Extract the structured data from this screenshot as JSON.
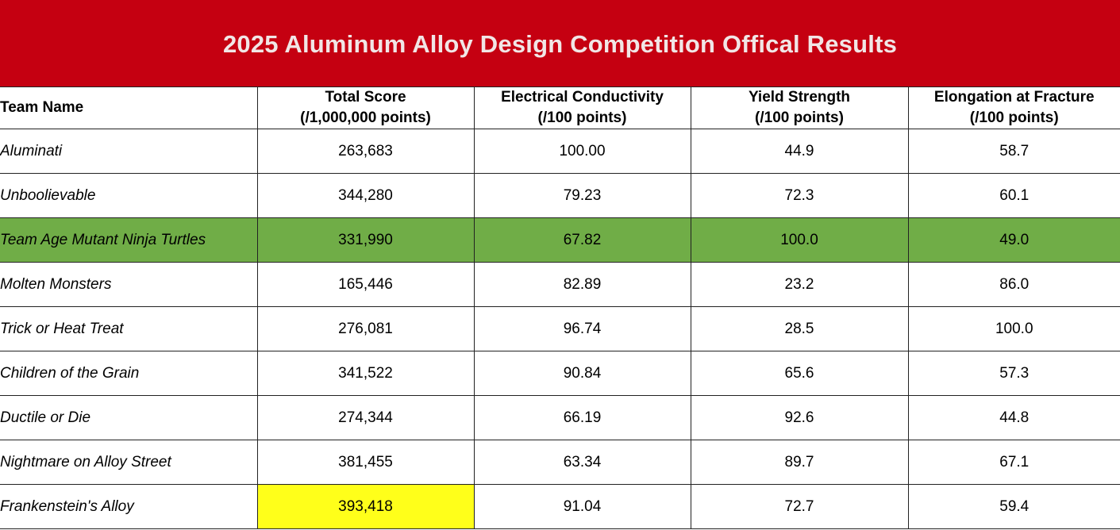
{
  "banner": {
    "title": "2025 Aluminum Alloy Design Competition Offical Results",
    "color": "#c50011"
  },
  "table": {
    "headers": [
      {
        "line1": "Team Name",
        "line2": ""
      },
      {
        "line1": "Total Score",
        "line2": "(/1,000,000 points)"
      },
      {
        "line1": "Electrical Conductivity",
        "line2": "(/100 points)"
      },
      {
        "line1": "Yield Strength",
        "line2": "(/100 points)"
      },
      {
        "line1": "Elongation at Fracture",
        "line2": "(/100 points)"
      }
    ],
    "rows": [
      {
        "team": "Aluminati",
        "total": "263,683",
        "conductivity": "100.00",
        "yield": "44.9",
        "elongation": "58.7"
      },
      {
        "team": "Unboolievable",
        "total": "344,280",
        "conductivity": "79.23",
        "yield": "72.3",
        "elongation": "60.1"
      },
      {
        "team": "Team Age Mutant Ninja Turtles",
        "total": "331,990",
        "conductivity": "67.82",
        "yield": "100.0",
        "elongation": "49.0"
      },
      {
        "team": "Molten Monsters",
        "total": "165,446",
        "conductivity": "82.89",
        "yield": "23.2",
        "elongation": "86.0"
      },
      {
        "team": "Trick or Heat Treat",
        "total": "276,081",
        "conductivity": "96.74",
        "yield": "28.5",
        "elongation": "100.0"
      },
      {
        "team": "Children of the Grain",
        "total": "341,522",
        "conductivity": "90.84",
        "yield": "65.6",
        "elongation": "57.3"
      },
      {
        "team": "Ductile or Die",
        "total": "274,344",
        "conductivity": "66.19",
        "yield": "92.6",
        "elongation": "44.8"
      },
      {
        "team": "Nightmare on Alloy Street",
        "total": "381,455",
        "conductivity": "63.34",
        "yield": "89.7",
        "elongation": "67.1"
      },
      {
        "team": "Frankenstein's Alloy",
        "total": "393,418",
        "conductivity": "91.04",
        "yield": "72.7",
        "elongation": "59.4"
      }
    ],
    "highlight_colors": {
      "row_green": "#70ad47",
      "cell_yellow": "#ffff1a"
    }
  }
}
